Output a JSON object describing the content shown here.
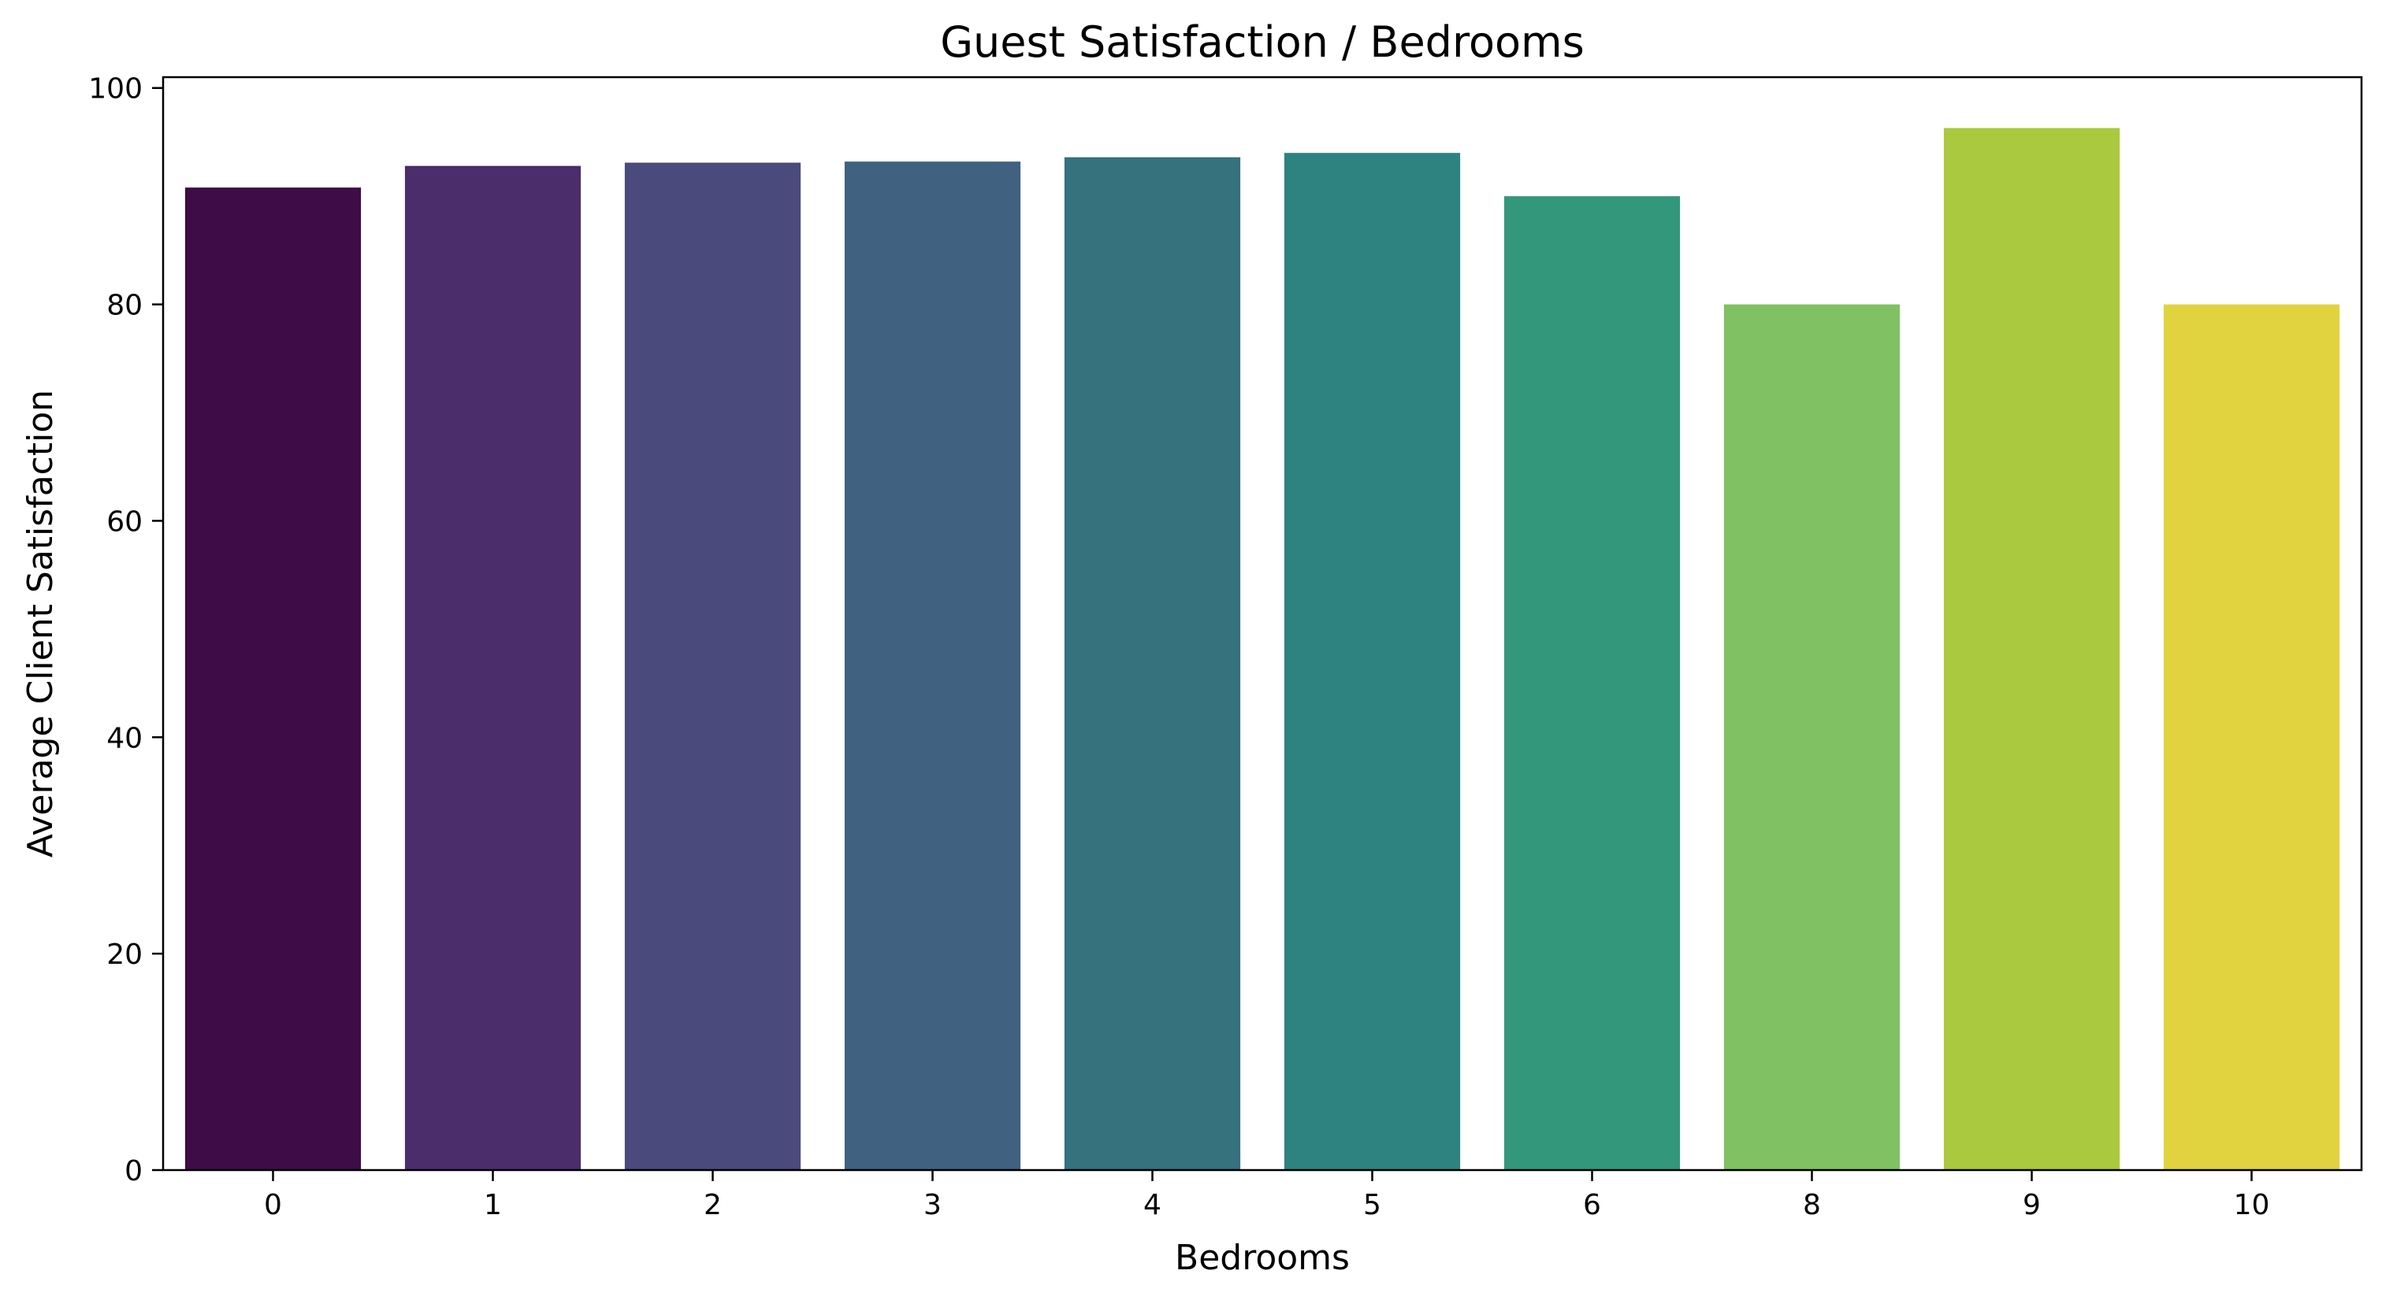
{
  "chart_data": {
    "type": "bar",
    "title": "Guest Satisfaction / Bedrooms",
    "xlabel": "Bedrooms",
    "ylabel": "Average Client Satisfaction",
    "categories": [
      "0",
      "1",
      "2",
      "3",
      "4",
      "5",
      "6",
      "8",
      "9",
      "10"
    ],
    "values": [
      90.8,
      92.8,
      93.1,
      93.2,
      93.6,
      94.0,
      90.0,
      80.0,
      96.3,
      80.0
    ],
    "ylim": [
      0,
      101
    ],
    "yticks": [
      0,
      20,
      40,
      60,
      80,
      100
    ],
    "ytick_labels": [
      "0",
      "20",
      "40",
      "60",
      "80",
      "100"
    ],
    "colors": [
      "#3e0c46",
      "#4a2d6a",
      "#4a4a7c",
      "#406180",
      "#36717e",
      "#2e8280",
      "#33977b",
      "#80c163",
      "#aac93f",
      "#e1d33f"
    ],
    "grid": false,
    "legend": "none"
  }
}
